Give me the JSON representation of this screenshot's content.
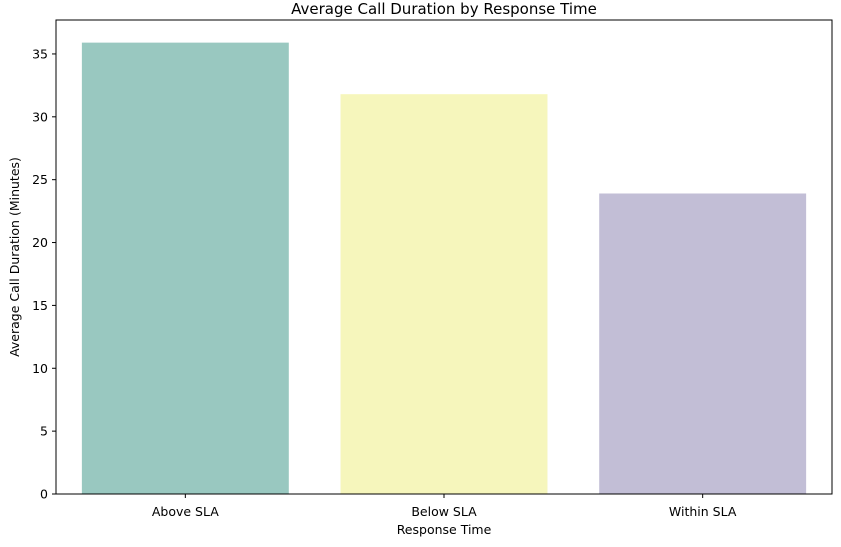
{
  "chart_data": {
    "type": "bar",
    "title": "Average Call Duration by Response Time",
    "xlabel": "Response Time",
    "ylabel": "Average Call Duration (Minutes)",
    "categories": [
      "Above SLA",
      "Below SLA",
      "Within SLA"
    ],
    "values": [
      35.9,
      31.8,
      23.9
    ],
    "colors": [
      "#99c8c0",
      "#f6f6bc",
      "#c2bed6"
    ],
    "ylim": [
      0,
      37.7
    ],
    "yticks": [
      0,
      5,
      10,
      15,
      20,
      25,
      30,
      35
    ],
    "grid": false,
    "legend": "none"
  }
}
